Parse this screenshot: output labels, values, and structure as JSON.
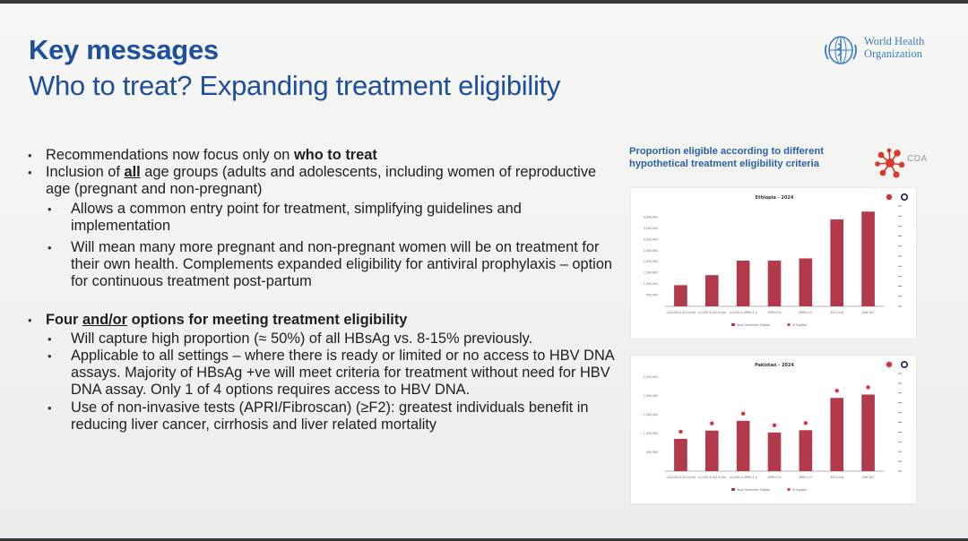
{
  "header": {
    "title": "Key messages",
    "subtitle": "Who to treat? Expanding treatment eligibility"
  },
  "who_logo": {
    "icon": "who-emblem-icon",
    "line1": "World Health",
    "line2": "Organization"
  },
  "section1": {
    "bullet1_prefix": "Recommendations now focus only on ",
    "bullet1_bold": "who to treat",
    "bullet2_prefix": "Inclusion of ",
    "bullet2_bold": "all",
    "bullet2_suffix": " age groups (adults and adolescents, including women of reproductive age (pregnant and non-pregnant)",
    "sub1": "Allows a common entry point for treatment, simplifying guidelines and implementation",
    "sub2": "Will mean many more pregnant and non-pregnant women will be on treatment for their own health. Complements expanded eligibility for antiviral prophylaxis – option for continuous treatment post-partum"
  },
  "section2": {
    "heading_prefix": "Four ",
    "heading_underlined": "and/or",
    "heading_suffix": " options for meeting treatment eligibility",
    "sub1": "Will capture high proportion (≈ 50%) of all HBsAg vs. 8-15% previously.",
    "sub2": "Applicable to all settings – where there is ready or limited or no access to HBV DNA assays. Majority of HBsAg +ve will meet criteria for treatment without need for HBV DNA assay. Only 1 of 4 options requires access to HBV DNA.",
    "sub3": "Use of non-invasive tests (APRI/Fibroscan) (≥F2): greatest individuals benefit in reducing liver cancer, cirrhosis and liver related mortality"
  },
  "charts_panel": {
    "header_line1": "Proportion eligible according to different",
    "header_line2": "hypothetical treatment eligibility criteria",
    "cda_logo_text": "CDA",
    "cda_icon": "cda-network-icon",
    "colors": {
      "bar": "#b33a4a",
      "marker": "#d9303a",
      "axis": "#9a9a9a"
    }
  },
  "chart_data": [
    {
      "type": "bar",
      "title": "Ethiopia - 2024",
      "categories": [
        "≥20,000 & ALT>ULN",
        "≥2,000 & ALT>ULN",
        "≥2,000 & APRI>1.5",
        "APRI>2.0",
        "APRI>1.5",
        "ALT>ULN",
        "ANY ALT"
      ],
      "values": [
        950000,
        1400000,
        2050000,
        2050000,
        2150000,
        3900000,
        4250000
      ],
      "ylim": [
        0,
        4500000
      ],
      "yticks": [
        "500,000",
        "1,000,000",
        "1,500,000",
        "2,000,000",
        "2,500,000",
        "3,000,000",
        "3,500,000",
        "4,000,000"
      ],
      "legend": [
        "Total Treatment Eligible",
        "% Eligible"
      ],
      "markers": false
    },
    {
      "type": "bar",
      "title": "Pakistan - 2024",
      "categories": [
        "≥20,000 & ALT>ULN",
        "≥2,000 & ALT>ULN",
        "≥2,000 & APRI>1.5",
        "APRI>2.0",
        "APRI>1.5",
        "ALT>ULN",
        "ANY ALT"
      ],
      "values": [
        860000,
        1080000,
        1340000,
        1030000,
        1090000,
        1950000,
        2040000
      ],
      "ylim": [
        0,
        2600000
      ],
      "yticks": [
        "500,000",
        "1,000,000",
        "1,500,000",
        "2,000,000",
        "2,500,000"
      ],
      "legend": [
        "Total Treatment Eligible",
        "% Eligible"
      ],
      "markers": true
    }
  ]
}
